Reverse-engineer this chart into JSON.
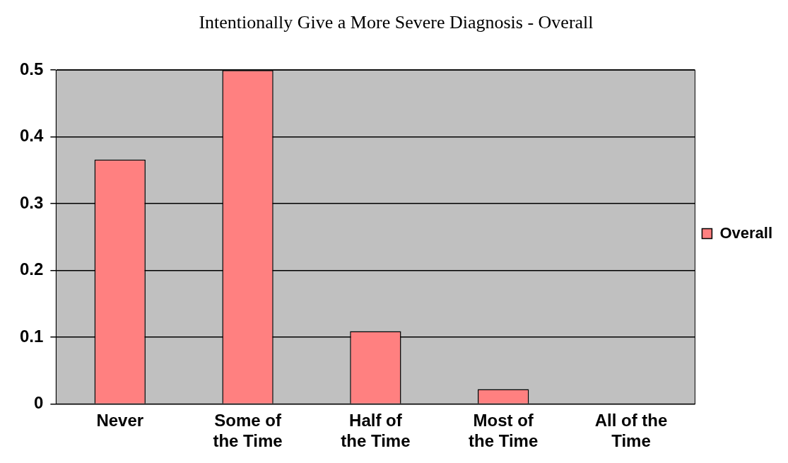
{
  "chart_data": {
    "type": "bar",
    "title": "Intentionally Give a More Severe Diagnosis - Overall",
    "categories": [
      "Never",
      "Some of the Time",
      "Half of the Time",
      "Most of the Time",
      "All of the Time"
    ],
    "series": [
      {
        "name": "Overall",
        "color": "#ff8080",
        "values": [
          0.366,
          0.5,
          0.109,
          0.022,
          0
        ]
      }
    ],
    "ylim": [
      0,
      0.5
    ],
    "yticks": [
      0,
      0.1,
      0.2,
      0.3,
      0.4,
      0.5
    ],
    "grid": "y",
    "legend": "right"
  }
}
